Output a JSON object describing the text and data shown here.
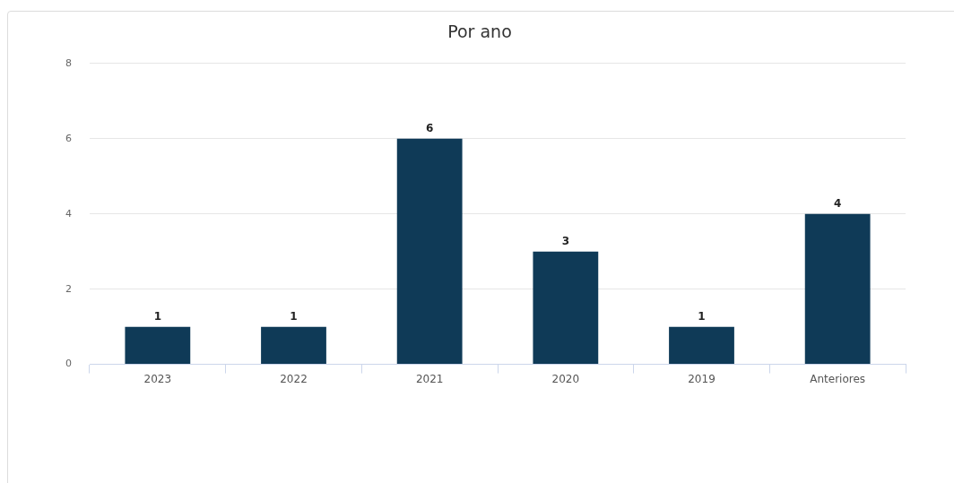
{
  "chart_data": {
    "type": "bar",
    "title": "Por ano",
    "categories": [
      "2023",
      "2022",
      "2021",
      "2020",
      "2019",
      "Anteriores"
    ],
    "values": [
      1,
      1,
      6,
      3,
      1,
      4
    ],
    "color": "#0f3a57",
    "ylim": [
      0,
      8
    ],
    "yticks": [
      0,
      2,
      4,
      6,
      8
    ],
    "grid": "y",
    "data_labels": true
  }
}
